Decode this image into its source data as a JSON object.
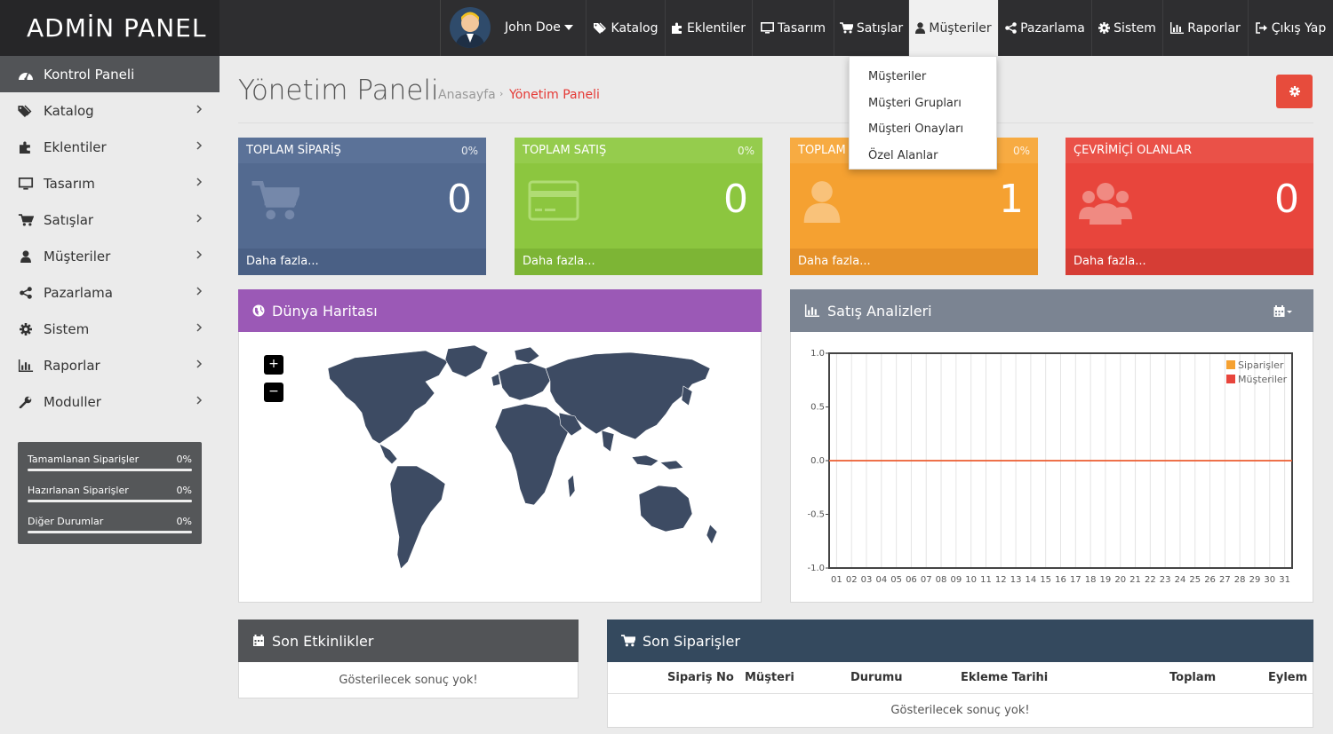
{
  "brand": "ADMİN PANEL",
  "user": {
    "name": "John Doe"
  },
  "topnav": [
    {
      "label": "Katalog",
      "icon": "tags-icon"
    },
    {
      "label": "Eklentiler",
      "icon": "puzzle-icon"
    },
    {
      "label": "Tasarım",
      "icon": "monitor-icon"
    },
    {
      "label": "Satışlar",
      "icon": "cart-icon"
    },
    {
      "label": "Müşteriler",
      "icon": "user-icon",
      "active": true
    },
    {
      "label": "Pazarlama",
      "icon": "share-icon"
    },
    {
      "label": "Sistem",
      "icon": "gear-icon"
    },
    {
      "label": "Raporlar",
      "icon": "bar-chart-icon"
    },
    {
      "label": "Çıkış Yap",
      "icon": "sign-out-icon"
    }
  ],
  "dropdown": [
    "Müşteriler",
    "Müşteri Grupları",
    "Müşteri Onayları",
    "Özel Alanlar"
  ],
  "sidebar": {
    "items": [
      {
        "label": "Kontrol Paneli",
        "icon": "dashboard-icon"
      },
      {
        "label": "Katalog",
        "icon": "tags-icon"
      },
      {
        "label": "Eklentiler",
        "icon": "puzzle-icon"
      },
      {
        "label": "Tasarım",
        "icon": "monitor-icon"
      },
      {
        "label": "Satışlar",
        "icon": "cart-icon"
      },
      {
        "label": "Müşteriler",
        "icon": "user-icon"
      },
      {
        "label": "Pazarlama",
        "icon": "share-icon"
      },
      {
        "label": "Sistem",
        "icon": "gear-icon"
      },
      {
        "label": "Raporlar",
        "icon": "bar-chart-icon"
      },
      {
        "label": "Moduller",
        "icon": "wrench-icon"
      }
    ],
    "stats": [
      {
        "label": "Tamamlanan Siparişler",
        "value": "0%"
      },
      {
        "label": "Hazırlanan Siparişler",
        "value": "0%"
      },
      {
        "label": "Diğer Durumlar",
        "value": "0%"
      }
    ]
  },
  "page": {
    "title": "Yönetim Paneli",
    "breadcrumb": [
      "Anasayfa",
      "›",
      "Yönetim Paneli"
    ]
  },
  "tiles": [
    {
      "title": "TOPLAM SİPARİŞ",
      "pct": "0%",
      "value": "0",
      "footer": "Daha fazla...",
      "icon": "cart-icon",
      "color": "#536a90"
    },
    {
      "title": "TOPLAM SATIŞ",
      "pct": "0%",
      "value": "0",
      "footer": "Daha fazla...",
      "icon": "credit-card-icon",
      "color": "#8cc63f"
    },
    {
      "title": "TOPLAM",
      "pct": "0%",
      "value": "1",
      "footer": "Daha fazla...",
      "icon": "user-icon",
      "color": "#f5a131"
    },
    {
      "title": "ÇEVRİMİÇİ OLANLAR",
      "pct": "",
      "value": "0",
      "footer": "Daha fazla...",
      "icon": "users-icon",
      "color": "#e8453c"
    }
  ],
  "map_panel": {
    "title": "Dünya Haritası",
    "zoom_in": "+",
    "zoom_out": "−"
  },
  "sales_panel": {
    "title": "Satış Analizleri"
  },
  "chart_data": {
    "type": "line",
    "x": [
      "01",
      "02",
      "03",
      "04",
      "05",
      "06",
      "07",
      "08",
      "09",
      "10",
      "11",
      "12",
      "13",
      "14",
      "15",
      "16",
      "17",
      "18",
      "19",
      "20",
      "21",
      "22",
      "23",
      "24",
      "25",
      "26",
      "27",
      "28",
      "29",
      "30",
      "31"
    ],
    "series": [
      {
        "name": "Siparişler",
        "values": [
          0,
          0,
          0,
          0,
          0,
          0,
          0,
          0,
          0,
          0,
          0,
          0,
          0,
          0,
          0,
          0,
          0,
          0,
          0,
          0,
          0,
          0,
          0,
          0,
          0,
          0,
          0,
          0,
          0,
          0,
          0
        ],
        "color": "#f5a131"
      },
      {
        "name": "Müşteriler",
        "values": [
          0,
          0,
          0,
          0,
          0,
          0,
          0,
          0,
          0,
          0,
          0,
          0,
          0,
          0,
          0,
          0,
          0,
          0,
          0,
          0,
          0,
          0,
          0,
          0,
          0,
          0,
          0,
          0,
          0,
          0,
          0
        ],
        "color": "#e8453c"
      }
    ],
    "ylim": [
      -1.0,
      1.0
    ],
    "yticks": [
      "1.0",
      "0.5",
      "0.0",
      "-0.5",
      "-1.0"
    ],
    "grid": true,
    "legend": "top-right"
  },
  "activity_panel": {
    "title": "Son Etkinlikler",
    "empty": "Gösterilecek sonuç yok!"
  },
  "orders_panel": {
    "title": "Son Siparişler",
    "columns": [
      "Sipariş No",
      "Müşteri",
      "Durumu",
      "Ekleme Tarihi",
      "Toplam",
      "Eylem"
    ],
    "empty": "Gösterilecek sonuç yok!"
  }
}
